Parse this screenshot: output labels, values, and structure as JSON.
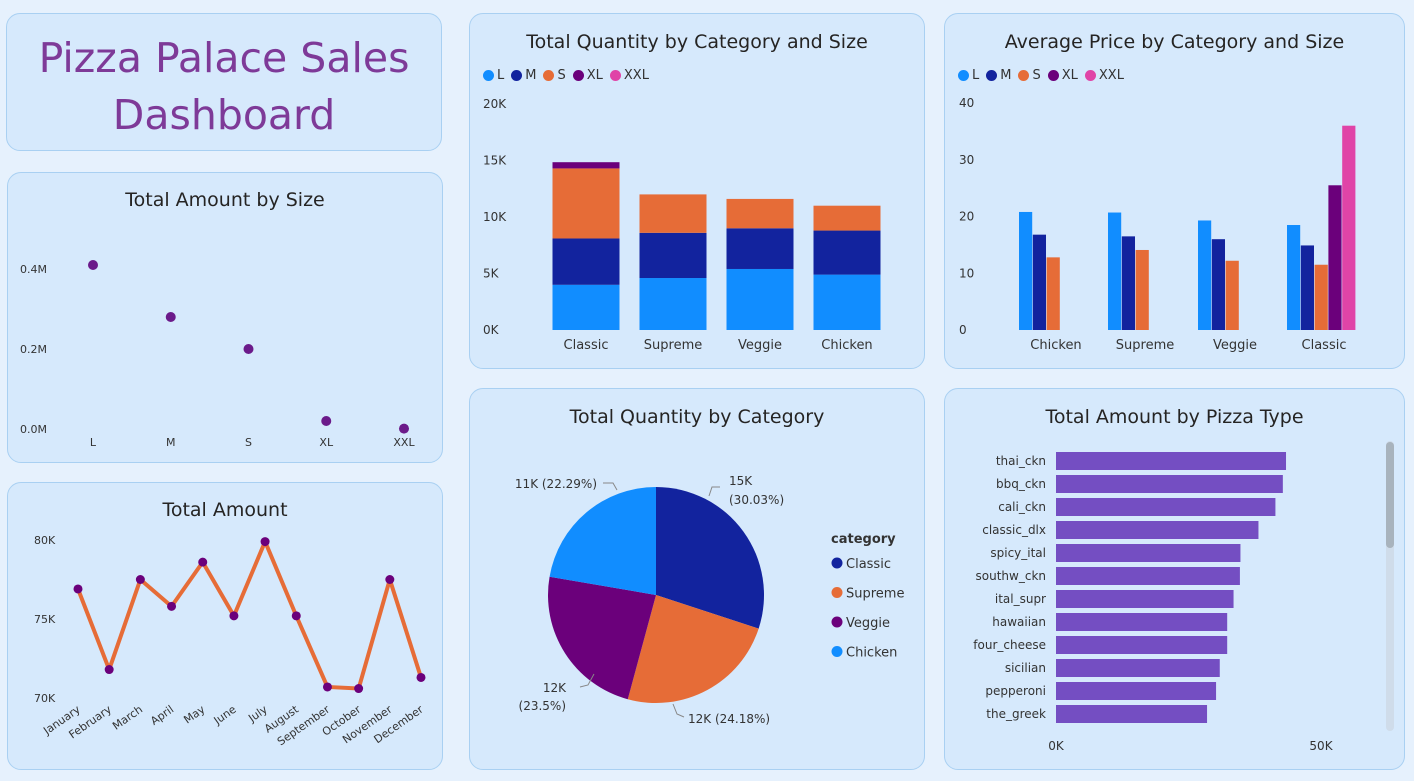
{
  "dashboard": {
    "title": "Pizza Palace Sales Dashboard"
  },
  "colors": {
    "L": "#118dff",
    "M": "#12239e",
    "S": "#e66c37",
    "XL": "#6b007b",
    "XXL": "#e044a7",
    "scatter": "#6b1a8a",
    "line": "#e66c37",
    "line_marker": "#6b007b",
    "hbar": "#744ec2"
  },
  "charts": {
    "amount_by_size": {
      "title": "Total Amount by Size",
      "chart_data": {
        "type": "scatter",
        "categories": [
          "L",
          "M",
          "S",
          "XL",
          "XXL"
        ],
        "values": [
          0.41,
          0.28,
          0.2,
          0.02,
          0.001
        ],
        "y_ticks": [
          "0.0M",
          "0.2M",
          "0.4M"
        ],
        "ylim": [
          0,
          0.4
        ],
        "xlabel": "",
        "ylabel": ""
      }
    },
    "total_amount": {
      "title": "Total Amount",
      "chart_data": {
        "type": "line",
        "categories": [
          "January",
          "February",
          "March",
          "April",
          "May",
          "June",
          "July",
          "August",
          "September",
          "October",
          "November",
          "December"
        ],
        "values": [
          76.9,
          71.8,
          77.5,
          75.8,
          78.6,
          75.2,
          79.9,
          75.2,
          70.7,
          70.6,
          77.5,
          71.3
        ],
        "y_ticks": [
          "70K",
          "75K",
          "80K"
        ],
        "ylim": [
          70,
          80
        ],
        "xlabel": "",
        "ylabel": ""
      }
    },
    "qty_by_cat_size": {
      "title": "Total Quantity by Category and Size",
      "legend": [
        "L",
        "M",
        "S",
        "XL",
        "XXL"
      ],
      "chart_data": {
        "type": "bar",
        "stacked": true,
        "categories": [
          "Classic",
          "Supreme",
          "Veggie",
          "Chicken"
        ],
        "series": [
          {
            "name": "L",
            "values": [
              4.0,
              4.6,
              5.4,
              4.9
            ]
          },
          {
            "name": "M",
            "values": [
              4.1,
              4.0,
              3.6,
              3.9
            ]
          },
          {
            "name": "S",
            "values": [
              6.2,
              3.4,
              2.6,
              2.2
            ]
          },
          {
            "name": "XL",
            "values": [
              0.55,
              0,
              0,
              0
            ]
          },
          {
            "name": "XXL",
            "values": [
              0,
              0,
              0,
              0
            ]
          }
        ],
        "y_ticks": [
          "0K",
          "5K",
          "10K",
          "15K",
          "20K"
        ],
        "ylim": [
          0,
          20
        ]
      }
    },
    "avg_price": {
      "title": "Average Price by Category and Size",
      "legend": [
        "L",
        "M",
        "S",
        "XL",
        "XXL"
      ],
      "chart_data": {
        "type": "bar",
        "grouped": true,
        "categories": [
          "Chicken",
          "Supreme",
          "Veggie",
          "Classic"
        ],
        "series": [
          {
            "name": "L",
            "values": [
              20.8,
              20.7,
              19.3,
              18.5
            ]
          },
          {
            "name": "M",
            "values": [
              16.8,
              16.5,
              16.0,
              14.9
            ]
          },
          {
            "name": "S",
            "values": [
              12.8,
              14.1,
              12.2,
              11.5
            ]
          },
          {
            "name": "XL",
            "values": [
              null,
              null,
              null,
              25.5
            ]
          },
          {
            "name": "XXL",
            "values": [
              null,
              null,
              null,
              36.0
            ]
          }
        ],
        "y_ticks": [
          "0",
          "10",
          "20",
          "30",
          "40"
        ],
        "ylim": [
          0,
          40
        ]
      }
    },
    "qty_by_category": {
      "title": "Total Quantity by Category",
      "legend_title": "category",
      "chart_data": {
        "type": "pie",
        "categories": [
          "Classic",
          "Supreme",
          "Veggie",
          "Chicken"
        ],
        "values": [
          30.03,
          24.18,
          23.5,
          22.29
        ],
        "labels": [
          [
            "15K",
            "(30.03%)"
          ],
          [
            "12K (24.18%)"
          ],
          [
            "12K",
            "(23.5%)"
          ],
          [
            "11K (22.29%)"
          ]
        ]
      }
    },
    "amount_by_type": {
      "title": "Total Amount by Pizza Type",
      "chart_data": {
        "type": "bar",
        "orientation": "horizontal",
        "categories": [
          "thai_ckn",
          "bbq_ckn",
          "cali_ckn",
          "classic_dlx",
          "spicy_ital",
          "southw_ckn",
          "ital_supr",
          "hawaiian",
          "four_cheese",
          "sicilian",
          "pepperoni",
          "the_greek"
        ],
        "values": [
          43.4,
          42.8,
          41.4,
          38.2,
          34.8,
          34.7,
          33.5,
          32.3,
          32.3,
          30.9,
          30.2,
          28.5
        ],
        "x_ticks": [
          "0K",
          "50K"
        ],
        "xlim": [
          0,
          50
        ]
      }
    }
  }
}
